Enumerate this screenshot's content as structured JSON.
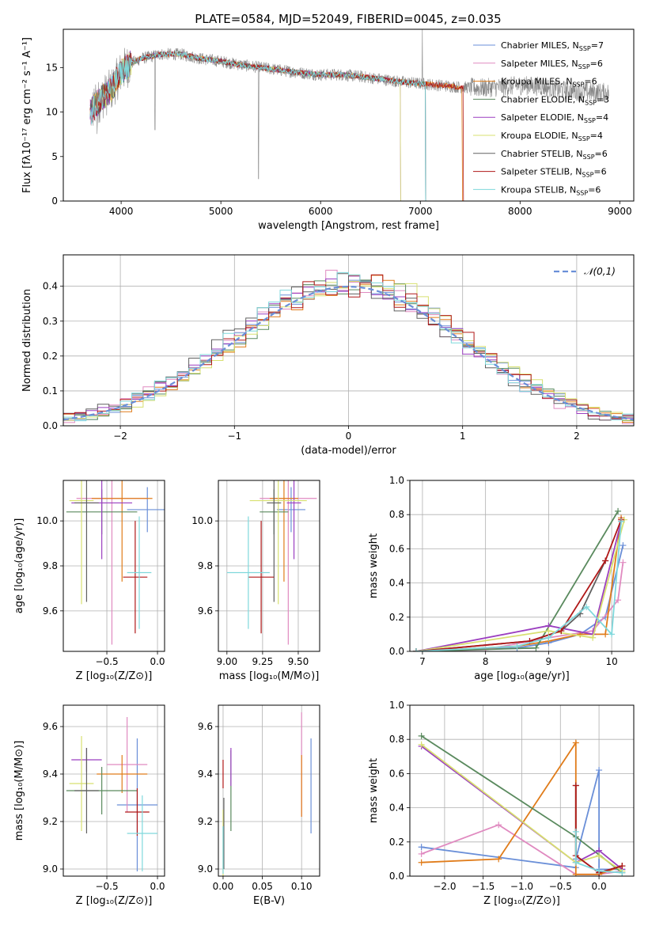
{
  "figure": {
    "title": "PLATE=0584, MJD=52049, FIBERID=0045, z=0.035"
  },
  "colors": {
    "series": [
      "#6a8fd8",
      "#e08ac0",
      "#e07c1a",
      "#5a8a5e",
      "#9b3fc0",
      "#d8e070",
      "#606060",
      "#b01818",
      "#7fd8dc"
    ],
    "spectrum_observed": "#888888"
  },
  "chart_data": [
    {
      "id": "spectrum",
      "type": "line",
      "xlabel": "wavelength [Angstrom, rest frame]",
      "ylabel": "Flux [fλ10⁻¹⁷ erg cm⁻² s⁻¹ A⁻¹]",
      "xlim": [
        3420,
        9140
      ],
      "ylim": [
        0,
        19.3
      ],
      "xticks": [
        "4000",
        "5000",
        "6000",
        "7000",
        "8000",
        "9000"
      ],
      "yticks": [
        "0",
        "5",
        "10",
        "15"
      ],
      "legend_position": "top-right",
      "legend": [
        {
          "label": "Chabrier MILES, N",
          "sub": "SSP",
          "value": "=7"
        },
        {
          "label": "Salpeter MILES, N",
          "sub": "SSP",
          "value": "=6"
        },
        {
          "label": "Kroupa MILES, N",
          "sub": "SSP",
          "value": "=6"
        },
        {
          "label": "Chabrier ELODIE, N",
          "sub": "SSP",
          "value": "=3"
        },
        {
          "label": "Salpeter ELODIE, N",
          "sub": "SSP",
          "value": "=4"
        },
        {
          "label": "Kroupa ELODIE, N",
          "sub": "SSP",
          "value": "=4"
        },
        {
          "label": "Chabrier STELIB, N",
          "sub": "SSP",
          "value": "=6"
        },
        {
          "label": "Salpeter STELIB, N",
          "sub": "SSP",
          "value": "=6"
        },
        {
          "label": "Kroupa STELIB, N",
          "sub": "SSP",
          "value": "=6"
        }
      ],
      "continuum": {
        "x": [
          3690,
          3800,
          3900,
          4000,
          4100,
          4200,
          4400,
          4600,
          4800,
          5000,
          5200,
          5400,
          5600,
          5800,
          6000,
          6200,
          6400,
          6600,
          6800,
          7000,
          7200,
          7400,
          7600,
          7800,
          8000,
          8200,
          8400,
          8600,
          8800
        ],
        "y": [
          10,
          11.5,
          12.5,
          14.5,
          15.5,
          16,
          16.5,
          16.5,
          16,
          15.7,
          15.3,
          15,
          14.7,
          14.4,
          14.2,
          14.2,
          14,
          13.7,
          13.4,
          13.2,
          13,
          12.8,
          12.7,
          12.8,
          13,
          12.9,
          12.5,
          12.3,
          12.2
        ]
      },
      "model_end_wavelength": [
        7050,
        7050,
        7420,
        7050,
        6800,
        6800,
        7050,
        7430,
        7050
      ]
    },
    {
      "id": "residuals",
      "type": "histogram",
      "xlabel": "(data-model)/error",
      "ylabel": "Normed distribution",
      "xlim": [
        -2.5,
        2.5
      ],
      "ylim": [
        0,
        0.49
      ],
      "xticks": [
        "−2",
        "−1",
        "0",
        "1",
        "2"
      ],
      "yticks": [
        "0.0",
        "0.1",
        "0.2",
        "0.3",
        "0.4"
      ],
      "bin_width": 0.1,
      "legend": "𝒩(0,1)",
      "legend_position": "top-right",
      "reference_curve": "gaussian mean 0 sigma 1",
      "series_shifts": [
        0.0,
        -0.05,
        0.05,
        0.03,
        -0.03,
        0.08,
        -0.08,
        0.02,
        -0.02
      ]
    },
    {
      "id": "age_vs_Z",
      "type": "errorbar",
      "xlabel": "Z [log₁₀(Z/Z⊙)]",
      "ylabel": "age  [log₁₀(age/yr)]",
      "xlim": [
        -0.93,
        0.07
      ],
      "ylim": [
        9.42,
        10.18
      ],
      "xticks": [
        -0.5,
        0.0
      ],
      "xtick_labels": [
        "−0.5",
        "0.0"
      ],
      "yticks": [
        9.6,
        9.8,
        10.0
      ],
      "ytick_labels": [
        "9.6",
        "9.8",
        "10.0"
      ],
      "points": [
        {
          "x": -0.1,
          "y": 10.05,
          "xerr": 0.2,
          "yerr": 0.1,
          "color": 0
        },
        {
          "x": -0.45,
          "y": 10.1,
          "xerr": 0.35,
          "yerr": 0.65,
          "color": 1
        },
        {
          "x": -0.35,
          "y": 10.1,
          "xerr": 0.3,
          "yerr": 0.37,
          "color": 2
        },
        {
          "x": -0.55,
          "y": 10.04,
          "xerr": 0.35,
          "yerr": 0.1,
          "color": 3
        },
        {
          "x": -0.55,
          "y": 10.08,
          "xerr": 0.3,
          "yerr": 0.25,
          "color": 4
        },
        {
          "x": -0.75,
          "y": 10.09,
          "xerr": 0.12,
          "yerr": 0.46,
          "color": 5
        },
        {
          "x": -0.7,
          "y": 10.08,
          "xerr": 0.12,
          "yerr": 0.44,
          "color": 6
        },
        {
          "x": -0.22,
          "y": 9.75,
          "xerr": 0.12,
          "yerr": 0.25,
          "color": 7
        },
        {
          "x": -0.18,
          "y": 9.77,
          "xerr": 0.12,
          "yerr": 0.25,
          "color": 8
        }
      ]
    },
    {
      "id": "age_vs_mass",
      "type": "errorbar",
      "xlabel": "mass [log₁₀(M/M⊙)]",
      "ylabel": "",
      "xlim": [
        8.94,
        9.65
      ],
      "ylim": [
        9.42,
        10.18
      ],
      "xticks": [
        9.0,
        9.25,
        9.5
      ],
      "xtick_labels": [
        "9.00",
        "9.25",
        "9.50"
      ],
      "yticks": [
        9.6,
        9.8,
        10.0
      ],
      "ytick_labels": [
        "9.6",
        "9.8",
        "10.0"
      ],
      "points": [
        {
          "x": 9.45,
          "y": 10.05,
          "xerr": 0.1,
          "yerr": 0.1,
          "color": 0
        },
        {
          "x": 9.43,
          "y": 10.1,
          "xerr": 0.2,
          "yerr": 0.65,
          "color": 1
        },
        {
          "x": 9.4,
          "y": 10.1,
          "xerr": 0.1,
          "yerr": 0.37,
          "color": 2
        },
        {
          "x": 9.33,
          "y": 10.04,
          "xerr": 0.1,
          "yerr": 0.1,
          "color": 3
        },
        {
          "x": 9.47,
          "y": 10.08,
          "xerr": 0.05,
          "yerr": 0.25,
          "color": 4
        },
        {
          "x": 9.36,
          "y": 10.09,
          "xerr": 0.2,
          "yerr": 0.46,
          "color": 5
        },
        {
          "x": 9.33,
          "y": 10.08,
          "xerr": 0.05,
          "yerr": 0.44,
          "color": 6
        },
        {
          "x": 9.24,
          "y": 9.75,
          "xerr": 0.09,
          "yerr": 0.25,
          "color": 7
        },
        {
          "x": 9.15,
          "y": 9.77,
          "xerr": 0.15,
          "yerr": 0.25,
          "color": 8
        }
      ]
    },
    {
      "id": "weight_vs_age",
      "type": "line",
      "xlabel": "age  [log₁₀(age/yr)]",
      "ylabel": "mass weight",
      "xlim": [
        6.8,
        10.35
      ],
      "ylim": [
        0,
        1.0
      ],
      "xticks": [
        7,
        8,
        9,
        10
      ],
      "xtick_labels": [
        "7",
        "8",
        "9",
        "10"
      ],
      "yticks": [
        0,
        0.2,
        0.4,
        0.6,
        0.8,
        1.0
      ],
      "ytick_labels": [
        "0.0",
        "0.2",
        "0.4",
        "0.6",
        "0.8",
        "1.0"
      ],
      "series": [
        {
          "color": 0,
          "x": [
            6.9,
            8.5,
            9.0,
            9.5,
            9.9,
            10.18
          ],
          "y": [
            0.0,
            0.02,
            0.05,
            0.1,
            0.2,
            0.62
          ]
        },
        {
          "color": 1,
          "x": [
            6.9,
            8.0,
            9.0,
            9.7,
            10.1,
            10.18
          ],
          "y": [
            0.0,
            0.01,
            0.08,
            0.12,
            0.3,
            0.52
          ]
        },
        {
          "color": 2,
          "x": [
            6.9,
            8.5,
            9.0,
            9.5,
            9.9,
            10.15
          ],
          "y": [
            0.0,
            0.03,
            0.06,
            0.1,
            0.1,
            0.78
          ]
        },
        {
          "color": 3,
          "x": [
            6.9,
            8.8,
            10.1
          ],
          "y": [
            0.0,
            0.02,
            0.82
          ]
        },
        {
          "color": 4,
          "x": [
            6.9,
            9.0,
            9.7,
            10.15
          ],
          "y": [
            0.0,
            0.15,
            0.1,
            0.76
          ]
        },
        {
          "color": 5,
          "x": [
            6.9,
            9.0,
            9.7,
            10.2
          ],
          "y": [
            0.0,
            0.12,
            0.08,
            0.77
          ]
        },
        {
          "color": 6,
          "x": [
            6.9,
            8.7,
            9.2,
            9.5,
            9.9
          ],
          "y": [
            0.0,
            0.06,
            0.12,
            0.22,
            0.53
          ]
        },
        {
          "color": 7,
          "x": [
            6.9,
            8.7,
            9.2,
            9.9,
            10.15
          ],
          "y": [
            0.0,
            0.06,
            0.12,
            0.53,
            0.77
          ]
        },
        {
          "color": 8,
          "x": [
            6.9,
            8.5,
            9.0,
            9.6,
            10.0,
            10.15
          ],
          "y": [
            0.0,
            0.03,
            0.08,
            0.26,
            0.1,
            0.76
          ]
        }
      ]
    },
    {
      "id": "mass_vs_Z",
      "type": "errorbar",
      "xlabel": "Z [log₁₀(Z/Z⊙)]",
      "ylabel": "mass [log₁₀(M/M⊙)]",
      "xlim": [
        -0.93,
        0.07
      ],
      "ylim": [
        8.97,
        9.69
      ],
      "xticks": [
        -0.5,
        0.0
      ],
      "xtick_labels": [
        "−0.5",
        "0.0"
      ],
      "yticks": [
        9.0,
        9.2,
        9.4,
        9.6
      ],
      "ytick_labels": [
        "9.0",
        "9.2",
        "9.4",
        "9.6"
      ],
      "points": [
        {
          "x": -0.2,
          "y": 9.27,
          "xerr": 0.2,
          "yerr": 0.28,
          "color": 0
        },
        {
          "x": -0.3,
          "y": 9.44,
          "xerr": 0.2,
          "yerr": 0.2,
          "color": 1
        },
        {
          "x": -0.35,
          "y": 9.4,
          "xerr": 0.25,
          "yerr": 0.08,
          "color": 2
        },
        {
          "x": -0.55,
          "y": 9.33,
          "xerr": 0.35,
          "yerr": 0.1,
          "color": 3
        },
        {
          "x": -0.7,
          "y": 9.46,
          "xerr": 0.15,
          "yerr": 0.05,
          "color": 4
        },
        {
          "x": -0.75,
          "y": 9.36,
          "xerr": 0.12,
          "yerr": 0.2,
          "color": 5
        },
        {
          "x": -0.7,
          "y": 9.33,
          "xerr": 0.12,
          "yerr": 0.18,
          "color": 6
        },
        {
          "x": -0.2,
          "y": 9.24,
          "xerr": 0.12,
          "yerr": 0.1,
          "color": 7
        },
        {
          "x": -0.15,
          "y": 9.15,
          "xerr": 0.15,
          "yerr": 0.16,
          "color": 8
        }
      ]
    },
    {
      "id": "mass_vs_ebv",
      "type": "errorbar",
      "xlabel": "E(B-V)",
      "ylabel": "",
      "xlim": [
        -0.006,
        0.123
      ],
      "ylim": [
        8.97,
        9.69
      ],
      "xticks": [
        0.0,
        0.05,
        0.1
      ],
      "xtick_labels": [
        "0.00",
        "0.05",
        "0.10"
      ],
      "yticks": [
        9.0,
        9.2,
        9.4,
        9.6
      ],
      "ytick_labels": [
        "9.0",
        "9.2",
        "9.4",
        "9.6"
      ],
      "points": [
        {
          "x": 0.112,
          "y": 9.35,
          "xerr": 0.0,
          "yerr": 0.2,
          "color": 0
        },
        {
          "x": 0.1,
          "y": 9.44,
          "xerr": 0.0,
          "yerr": 0.22,
          "color": 1
        },
        {
          "x": 0.1,
          "y": 9.35,
          "xerr": 0.0,
          "yerr": 0.13,
          "color": 2
        },
        {
          "x": 0.01,
          "y": 9.33,
          "xerr": 0.0,
          "yerr": 0.17,
          "color": 3
        },
        {
          "x": 0.01,
          "y": 9.43,
          "xerr": 0.0,
          "yerr": 0.08,
          "color": 4
        },
        {
          "x": 0.0,
          "y": 9.1,
          "xerr": 0.0,
          "yerr": 0.15,
          "color": 5
        },
        {
          "x": 0.001,
          "y": 9.15,
          "xerr": 0.0,
          "yerr": 0.15,
          "color": 6
        },
        {
          "x": 0.0,
          "y": 9.4,
          "xerr": 0.0,
          "yerr": 0.06,
          "color": 7
        },
        {
          "x": 0.0,
          "y": 9.08,
          "xerr": 0.0,
          "yerr": 0.1,
          "color": 8
        }
      ]
    },
    {
      "id": "weight_vs_Z",
      "type": "line",
      "xlabel": "Z [log₁₀(Z/Z⊙)]",
      "ylabel": "mass weight",
      "xlim": [
        -2.45,
        0.45
      ],
      "ylim": [
        0,
        1.0
      ],
      "xticks": [
        -2.0,
        -1.5,
        -1.0,
        -0.5,
        0.0
      ],
      "xtick_labels": [
        "−2.0",
        "−1.5",
        "−1.0",
        "−0.5",
        "0.0"
      ],
      "yticks": [
        0,
        0.2,
        0.4,
        0.6,
        0.8,
        1.0
      ],
      "ytick_labels": [
        "0.0",
        "0.2",
        "0.4",
        "0.6",
        "0.8",
        "1.0"
      ],
      "series": [
        {
          "color": 0,
          "x": [
            -2.3,
            -0.3,
            -0.3,
            0.0,
            0.0,
            0.3
          ],
          "y": [
            0.17,
            0.05,
            0.1,
            0.62,
            0.04,
            0.04
          ]
        },
        {
          "color": 1,
          "x": [
            -2.3,
            -1.3,
            -0.3,
            0.0,
            0.3
          ],
          "y": [
            0.13,
            0.3,
            0.01,
            0.01,
            0.03
          ]
        },
        {
          "color": 2,
          "x": [
            -2.3,
            -1.3,
            -0.3,
            -0.3,
            0.0,
            0.3
          ],
          "y": [
            0.08,
            0.1,
            0.78,
            0.01,
            0.01,
            0.06
          ]
        },
        {
          "color": 3,
          "x": [
            -2.3,
            -0.3,
            0.3
          ],
          "y": [
            0.82,
            0.23,
            0.02
          ]
        },
        {
          "color": 4,
          "x": [
            -2.3,
            -0.3,
            0.0,
            0.3
          ],
          "y": [
            0.76,
            0.08,
            0.15,
            0.04
          ]
        },
        {
          "color": 5,
          "x": [
            -2.3,
            -0.3,
            0.0,
            0.3
          ],
          "y": [
            0.77,
            0.08,
            0.12,
            0.03
          ]
        },
        {
          "color": 6,
          "x": [
            -0.3,
            -0.3,
            0.0,
            0.3
          ],
          "y": [
            0.53,
            0.12,
            0.02,
            0.06
          ]
        },
        {
          "color": 7,
          "x": [
            -0.3,
            -0.3,
            0.0,
            0.3
          ],
          "y": [
            0.53,
            0.12,
            0.02,
            0.06
          ]
        },
        {
          "color": 8,
          "x": [
            -0.3,
            -0.3,
            0.0,
            0.3
          ],
          "y": [
            0.26,
            0.08,
            0.03,
            0.02
          ]
        }
      ]
    }
  ]
}
